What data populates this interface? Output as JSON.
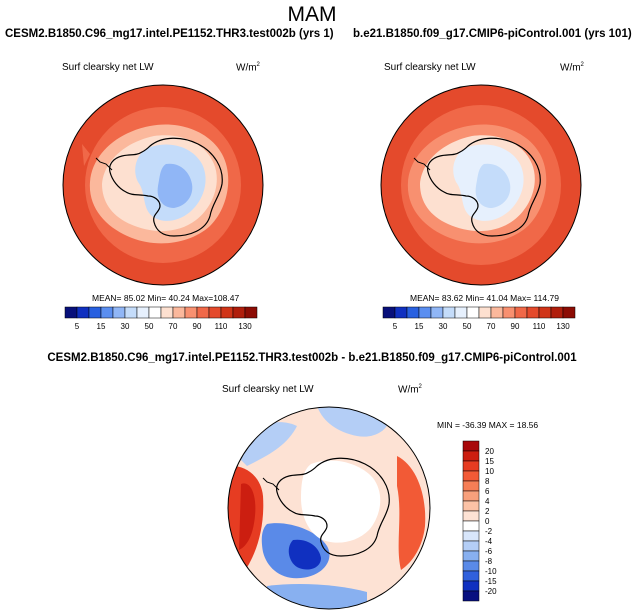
{
  "figure": {
    "title": "MAM"
  },
  "panel_left": {
    "case": "CESM2.B1850.C96_mg17.intel.PE1152.THR3.test002b (yrs 1)",
    "variable": "Surf clearsky net LW",
    "units_base": "W/m",
    "units_exp": "2",
    "stats": "MEAN= 85.02  Min= 40.24  Max=108.47"
  },
  "panel_right": {
    "case": "b.e21.B1850.f09_g17.CMIP6-piControl.001 (yrs 101)",
    "variable": "Surf clearsky net LW",
    "units_base": "W/m",
    "units_exp": "2",
    "stats": "MEAN= 83.62  Min= 41.04  Max= 114.79"
  },
  "panel_diff": {
    "title": "CESM2.B1850.C96_mg17.intel.PE1152.THR3.test002b - b.e21.B1850.f09_g17.CMIP6-piControl.001",
    "variable": "Surf clearsky net LW",
    "units_base": "W/m",
    "units_exp": "2",
    "stats": "MIN = -36.39  MAX =  18.56"
  },
  "colorbar_abs": {
    "labels": [
      "5",
      "15",
      "30",
      "50",
      "70",
      "90",
      "110",
      "130"
    ],
    "colors": [
      "#08107a",
      "#1030c0",
      "#2860e0",
      "#5a8ef0",
      "#90b6f6",
      "#c4dcfa",
      "#e6f0fd",
      "#ffffff",
      "#fde0d0",
      "#fbb89c",
      "#f89070",
      "#f06848",
      "#e44a2c",
      "#d03418",
      "#b01e0c",
      "#8c0c04"
    ]
  },
  "colorbar_diff": {
    "labels": [
      "20",
      "15",
      "10",
      "8",
      "6",
      "4",
      "2",
      "0",
      "-2",
      "-4",
      "-6",
      "-8",
      "-10",
      "-15",
      "-20"
    ],
    "colors": [
      "#a8080a",
      "#cc1e10",
      "#e63c22",
      "#f25a36",
      "#f67e56",
      "#f8a07c",
      "#fbc2a6",
      "#fde2d4",
      "#ffffff",
      "#d8e6fb",
      "#b4cef6",
      "#88b0f0",
      "#5a8ae8",
      "#3060dc",
      "#1030c0",
      "#081080"
    ]
  }
}
